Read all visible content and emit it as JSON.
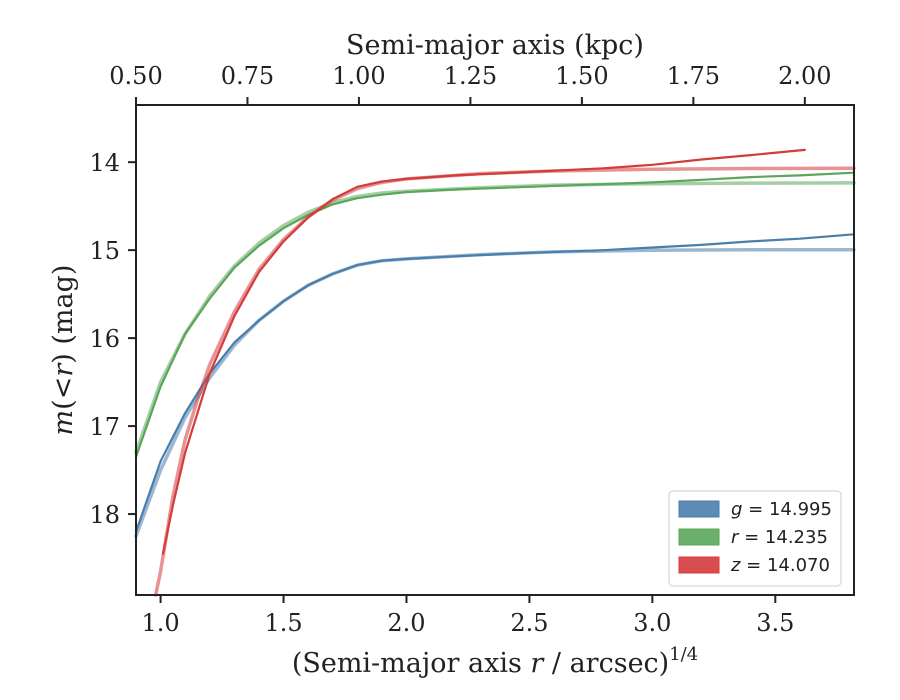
{
  "chart_data": {
    "type": "line",
    "xlabel_main": "(Semi-major axis ",
    "xlabel_var": "r",
    "xlabel_tail": " / arcsec)",
    "xlabel_sup": "1/4",
    "xlabel_top": "Semi-major axis (kpc)",
    "ylabel_var_m": "m",
    "ylabel_mid": "(<",
    "ylabel_var_r": "r",
    "ylabel_tail": ") (mag)",
    "xlim": [
      0.9,
      3.82
    ],
    "ylim": [
      18.92,
      13.35
    ],
    "y_inverted": true,
    "xticks": [
      1.0,
      1.5,
      2.0,
      2.5,
      3.0,
      3.5
    ],
    "xtick_labels": [
      "1.0",
      "1.5",
      "2.0",
      "2.5",
      "3.0",
      "3.5"
    ],
    "yticks": [
      14,
      15,
      16,
      17,
      18
    ],
    "ytick_labels": [
      "14",
      "15",
      "16",
      "17",
      "18"
    ],
    "top_xticks_kpc": [
      0.5,
      0.75,
      1.0,
      1.25,
      1.5,
      1.75,
      2.0
    ],
    "top_xtick_labels": [
      "0.50",
      "0.75",
      "1.00",
      "1.25",
      "1.50",
      "1.75",
      "2.00"
    ],
    "top_axis_x_at_kpc": {
      "kpc": [
        0.5,
        2.0
      ],
      "x": [
        0.9,
        3.62
      ]
    },
    "legend_position": "lower right",
    "grid": false,
    "series": [
      {
        "band": "g",
        "value": "14.995",
        "color": "#4a7eab",
        "data": {
          "x": [
            0.9,
            1.0,
            1.1,
            1.2,
            1.3,
            1.4,
            1.5,
            1.6,
            1.7,
            1.8,
            1.9,
            2.0,
            2.2,
            2.5,
            2.8,
            3.0,
            3.2,
            3.4,
            3.6,
            3.82
          ],
          "y": [
            18.2,
            17.4,
            16.85,
            16.4,
            16.05,
            15.8,
            15.58,
            15.4,
            15.27,
            15.17,
            15.12,
            15.1,
            15.07,
            15.03,
            15.0,
            14.97,
            14.94,
            14.9,
            14.87,
            14.82
          ]
        },
        "model": {
          "x": [
            0.9,
            1.0,
            1.1,
            1.2,
            1.3,
            1.4,
            1.5,
            1.6,
            1.7,
            1.8,
            1.9,
            2.0,
            2.3,
            2.6,
            3.0,
            3.4,
            3.82
          ],
          "y": [
            18.25,
            17.5,
            16.9,
            16.45,
            16.08,
            15.8,
            15.58,
            15.4,
            15.27,
            15.17,
            15.12,
            15.1,
            15.05,
            15.02,
            15.0,
            14.995,
            14.995
          ]
        }
      },
      {
        "band": "r",
        "value": "14.235",
        "color": "#5aa65a",
        "data": {
          "x": [
            0.9,
            1.0,
            1.1,
            1.2,
            1.3,
            1.4,
            1.5,
            1.6,
            1.7,
            1.8,
            1.9,
            2.0,
            2.2,
            2.5,
            2.8,
            3.0,
            3.2,
            3.4,
            3.6,
            3.82
          ],
          "y": [
            17.35,
            16.55,
            15.95,
            15.55,
            15.2,
            14.95,
            14.75,
            14.6,
            14.48,
            14.41,
            14.37,
            14.34,
            14.31,
            14.28,
            14.25,
            14.23,
            14.2,
            14.17,
            14.15,
            14.12
          ]
        },
        "model": {
          "x": [
            0.9,
            1.0,
            1.1,
            1.2,
            1.3,
            1.4,
            1.5,
            1.6,
            1.7,
            1.8,
            1.9,
            2.0,
            2.3,
            2.6,
            3.0,
            3.4,
            3.82
          ],
          "y": [
            17.3,
            16.5,
            15.95,
            15.52,
            15.18,
            14.92,
            14.72,
            14.57,
            14.46,
            14.39,
            14.35,
            14.33,
            14.29,
            14.26,
            14.245,
            14.238,
            14.235
          ]
        }
      },
      {
        "band": "z",
        "value": "14.070",
        "color": "#d43b3b",
        "data": {
          "x": [
            1.01,
            1.05,
            1.1,
            1.15,
            1.2,
            1.3,
            1.4,
            1.5,
            1.6,
            1.7,
            1.8,
            1.9,
            2.0,
            2.2,
            2.5,
            2.8,
            3.0,
            3.2,
            3.4,
            3.62
          ],
          "y": [
            18.45,
            17.9,
            17.3,
            16.85,
            16.4,
            15.75,
            15.25,
            14.9,
            14.63,
            14.42,
            14.28,
            14.22,
            14.19,
            14.15,
            14.11,
            14.07,
            14.03,
            13.97,
            13.92,
            13.86
          ]
        },
        "model": {
          "x": [
            0.98,
            1.0,
            1.05,
            1.1,
            1.15,
            1.2,
            1.3,
            1.4,
            1.5,
            1.6,
            1.7,
            1.8,
            1.9,
            2.0,
            2.3,
            2.6,
            3.0,
            3.4,
            3.82
          ],
          "y": [
            18.95,
            18.65,
            17.8,
            17.15,
            16.7,
            16.3,
            15.7,
            15.22,
            14.88,
            14.62,
            14.43,
            14.3,
            14.23,
            14.19,
            14.13,
            14.1,
            14.08,
            14.072,
            14.07
          ]
        }
      }
    ]
  }
}
